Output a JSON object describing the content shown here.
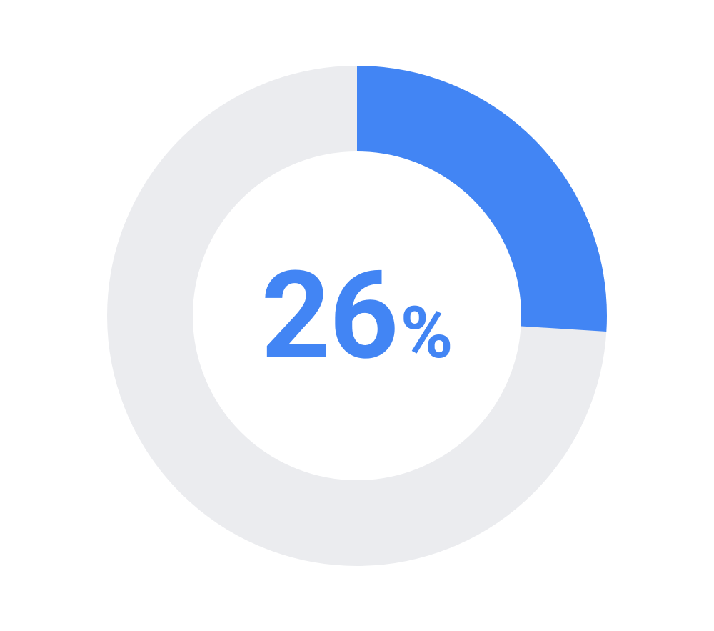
{
  "chart": {
    "type": "donut",
    "percent": 26,
    "value_text": "26",
    "suffix_text": "%",
    "size": 700,
    "stroke_width": 120,
    "track_color": "#ebecef",
    "progress_color": "#4285f4",
    "background_color": "#ffffff",
    "text_color": "#4285f4",
    "value_fontsize": 170,
    "suffix_fontsize": 100,
    "font_weight": 700,
    "linecap": "butt",
    "start_angle_deg": 0
  }
}
